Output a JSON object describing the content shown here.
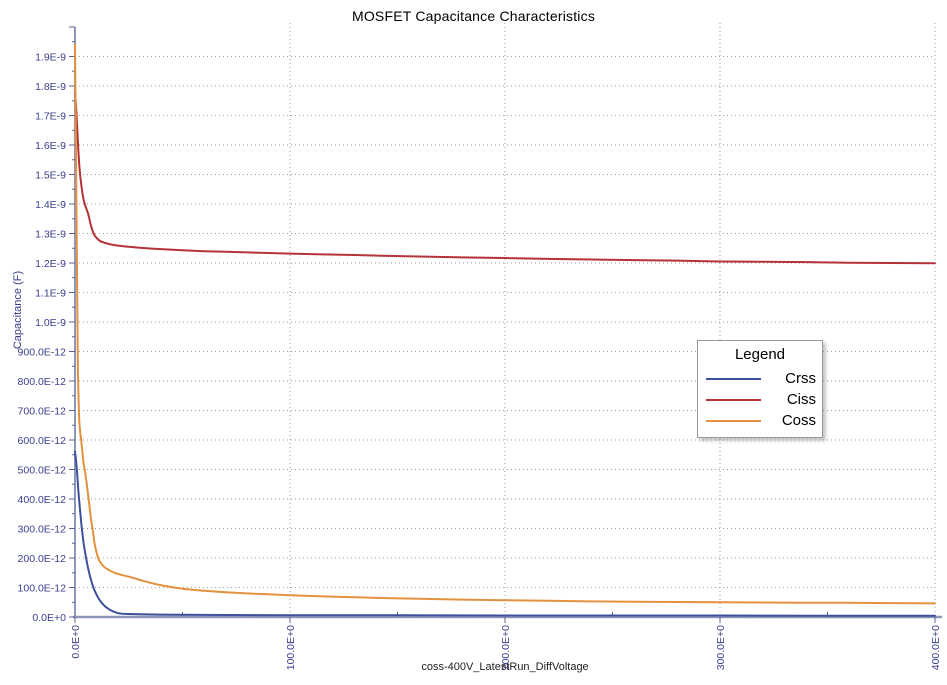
{
  "chart_data": {
    "type": "line",
    "title": "MOSFET Capacitance Characteristics",
    "xlabel": "coss-400V_LatestRun_DiffVoltage",
    "ylabel": "Capacitance (F)",
    "xlim": [
      0,
      400
    ],
    "ylim": [
      0,
      2e-09
    ],
    "grid": "dotted",
    "legend": {
      "title": "Legend",
      "position": "right-middle"
    },
    "x_major_ticks": [
      0,
      100,
      200,
      300,
      400
    ],
    "x_tick_labels": [
      "0.0E+0",
      "100.0E+0",
      "200.0E+0",
      "300.0E+0",
      "400.0E+0"
    ],
    "x_minor_ticks": [
      50,
      150,
      250,
      350
    ],
    "y_major_step": 1e-10,
    "y_minor_step": 5e-11,
    "y_tick_labels": [
      "0.0E+0",
      "100.0E-12",
      "200.0E-12",
      "300.0E-12",
      "400.0E-12",
      "500.0E-12",
      "600.0E-12",
      "700.0E-12",
      "800.0E-12",
      "900.0E-12",
      "1.0E-9",
      "1.1E-9",
      "1.2E-9",
      "1.3E-9",
      "1.4E-9",
      "1.5E-9",
      "1.6E-9",
      "1.7E-9",
      "1.8E-9",
      "1.9E-9"
    ],
    "colors": {
      "axis": "#8d97ba",
      "tick": "#5a6090",
      "tick_label": "#3a3e8c",
      "grid": "#9a9a9a",
      "title": "#000000"
    },
    "series": [
      {
        "name": "Crss",
        "color": "#3f519b",
        "points": [
          [
            0,
            5.6e-10
          ],
          [
            0.5,
            5.3e-10
          ],
          [
            1,
            4.85e-10
          ],
          [
            1.5,
            4.35e-10
          ],
          [
            2,
            3.9e-10
          ],
          [
            2.5,
            3.5e-10
          ],
          [
            3,
            3.1e-10
          ],
          [
            3.5,
            2.8e-10
          ],
          [
            4,
            2.5e-10
          ],
          [
            5,
            2.05e-10
          ],
          [
            6,
            1.68e-10
          ],
          [
            7,
            1.38e-10
          ],
          [
            8,
            1.12e-10
          ],
          [
            9,
            9.2e-11
          ],
          [
            10,
            7.6e-11
          ],
          [
            11,
            6.2e-11
          ],
          [
            12,
            5.2e-11
          ],
          [
            13,
            4.3e-11
          ],
          [
            14,
            3.6e-11
          ],
          [
            15,
            3e-11
          ],
          [
            16,
            2.5e-11
          ],
          [
            18,
            1.8e-11
          ],
          [
            20,
            1.3e-11
          ],
          [
            22,
            1.1e-11
          ],
          [
            25,
            1e-11
          ],
          [
            30,
            9e-12
          ],
          [
            40,
            8e-12
          ],
          [
            60,
            7e-12
          ],
          [
            100,
            6e-12
          ],
          [
            150,
            6e-12
          ],
          [
            200,
            5e-12
          ],
          [
            250,
            5e-12
          ],
          [
            300,
            5e-12
          ],
          [
            350,
            4e-12
          ],
          [
            400,
            4e-12
          ]
        ]
      },
      {
        "name": "Ciss",
        "color": "#b43337",
        "points": [
          [
            0,
            1.78e-09
          ],
          [
            0.5,
            1.73e-09
          ],
          [
            1,
            1.66e-09
          ],
          [
            1.5,
            1.59e-09
          ],
          [
            2,
            1.53e-09
          ],
          [
            2.5,
            1.49e-09
          ],
          [
            3,
            1.46e-09
          ],
          [
            3.5,
            1.435e-09
          ],
          [
            4,
            1.415e-09
          ],
          [
            4.5,
            1.4e-09
          ],
          [
            5,
            1.39e-09
          ],
          [
            5.5,
            1.38e-09
          ],
          [
            6,
            1.37e-09
          ],
          [
            6.5,
            1.355e-09
          ],
          [
            7,
            1.34e-09
          ],
          [
            7.5,
            1.325e-09
          ],
          [
            8,
            1.313e-09
          ],
          [
            9,
            1.295e-09
          ],
          [
            10,
            1.285e-09
          ],
          [
            11,
            1.278e-09
          ],
          [
            12,
            1.273e-09
          ],
          [
            14,
            1.268e-09
          ],
          [
            16,
            1.264e-09
          ],
          [
            18,
            1.261e-09
          ],
          [
            20,
            1.259e-09
          ],
          [
            25,
            1.255e-09
          ],
          [
            30,
            1.252e-09
          ],
          [
            35,
            1.249e-09
          ],
          [
            40,
            1.247e-09
          ],
          [
            50,
            1.243e-09
          ],
          [
            60,
            1.24e-09
          ],
          [
            70,
            1.238e-09
          ],
          [
            80,
            1.236e-09
          ],
          [
            90,
            1.234e-09
          ],
          [
            100,
            1.232e-09
          ],
          [
            115,
            1.229e-09
          ],
          [
            130,
            1.227e-09
          ],
          [
            145,
            1.224e-09
          ],
          [
            160,
            1.222e-09
          ],
          [
            180,
            1.219e-09
          ],
          [
            200,
            1.217e-09
          ],
          [
            220,
            1.214e-09
          ],
          [
            240,
            1.212e-09
          ],
          [
            260,
            1.21e-09
          ],
          [
            280,
            1.208e-09
          ],
          [
            300,
            1.205e-09
          ],
          [
            320,
            1.204e-09
          ],
          [
            340,
            1.203e-09
          ],
          [
            360,
            1.201e-09
          ],
          [
            380,
            1.2e-09
          ],
          [
            400,
            1.199e-09
          ]
        ]
      },
      {
        "name": "Coss",
        "color": "#e2913e",
        "points": [
          [
            0,
            1.94e-09
          ],
          [
            0.2,
            1.8e-09
          ],
          [
            0.4,
            1.62e-09
          ],
          [
            0.6,
            1.45e-09
          ],
          [
            0.8,
            1.28e-09
          ],
          [
            1,
            1.1e-09
          ],
          [
            1.2,
            9.4e-10
          ],
          [
            1.4,
            8.2e-10
          ],
          [
            1.7,
            7.2e-10
          ],
          [
            2,
            6.6e-10
          ],
          [
            2.5,
            6.2e-10
          ],
          [
            3,
            5.9e-10
          ],
          [
            3.5,
            5.55e-10
          ],
          [
            4,
            5.2e-10
          ],
          [
            4.5,
            5e-10
          ],
          [
            5,
            4.75e-10
          ],
          [
            5.5,
            4.5e-10
          ],
          [
            6,
            4.2e-10
          ],
          [
            6.5,
            3.9e-10
          ],
          [
            7,
            3.6e-10
          ],
          [
            7.5,
            3.3e-10
          ],
          [
            8,
            3.05e-10
          ],
          [
            8.5,
            2.8e-10
          ],
          [
            9,
            2.55e-10
          ],
          [
            9.5,
            2.35e-10
          ],
          [
            10,
            2.2e-10
          ],
          [
            10.5,
            2.05e-10
          ],
          [
            11,
            1.95e-10
          ],
          [
            12,
            1.83e-10
          ],
          [
            13,
            1.74e-10
          ],
          [
            14,
            1.67e-10
          ],
          [
            16,
            1.58e-10
          ],
          [
            18,
            1.51e-10
          ],
          [
            20,
            1.46e-10
          ],
          [
            23,
            1.4e-10
          ],
          [
            26,
            1.35e-10
          ],
          [
            30,
            1.26e-10
          ],
          [
            34,
            1.18e-10
          ],
          [
            38,
            1.11e-10
          ],
          [
            42,
            1.05e-10
          ],
          [
            46,
            1e-10
          ],
          [
            50,
            9.6e-11
          ],
          [
            55,
            9.2e-11
          ],
          [
            60,
            8.9e-11
          ],
          [
            70,
            8.4e-11
          ],
          [
            80,
            8e-11
          ],
          [
            90,
            7.7e-11
          ],
          [
            100,
            7.4e-11
          ],
          [
            115,
            7e-11
          ],
          [
            130,
            6.7e-11
          ],
          [
            145,
            6.4e-11
          ],
          [
            160,
            6.2e-11
          ],
          [
            180,
            5.9e-11
          ],
          [
            200,
            5.7e-11
          ],
          [
            220,
            5.5e-11
          ],
          [
            240,
            5.3e-11
          ],
          [
            260,
            5.2e-11
          ],
          [
            280,
            5.1e-11
          ],
          [
            300,
            5e-11
          ],
          [
            320,
            4.9e-11
          ],
          [
            340,
            4.85e-11
          ],
          [
            360,
            4.8e-11
          ],
          [
            378,
            4.7e-11
          ],
          [
            400,
            4.6e-11
          ]
        ]
      }
    ]
  }
}
